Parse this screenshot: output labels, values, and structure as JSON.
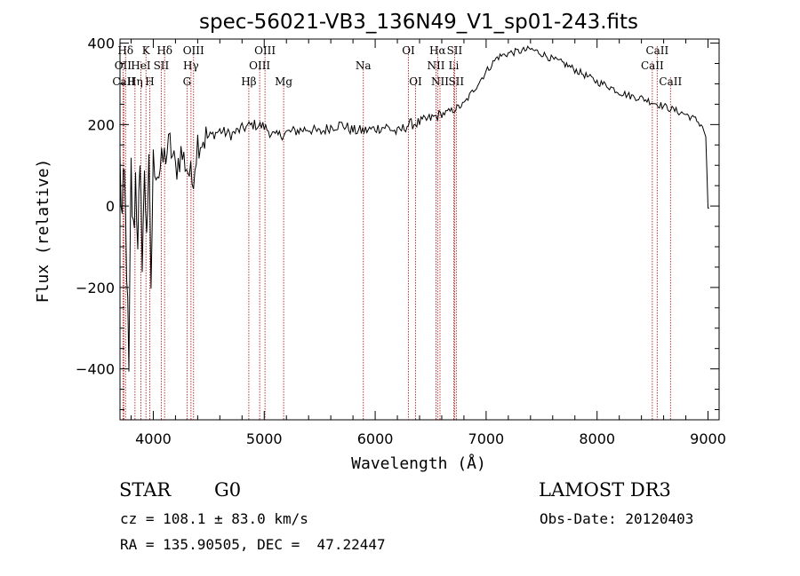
{
  "chart_data": {
    "type": "line",
    "title": "spec-56021-VB3_136N49_V1_sp01-243.fits",
    "xlabel": "Wavelength (Å)",
    "ylabel": "Flux (relative)",
    "xlim": [
      3700,
      9100
    ],
    "ylim": [
      -525,
      410
    ],
    "xticks": [
      4000,
      5000,
      6000,
      7000,
      8000,
      9000
    ],
    "yticks": [
      -400,
      -200,
      0,
      200,
      400
    ],
    "grid": false,
    "series": [
      {
        "name": "flux",
        "x": [
          3700,
          3720,
          3740,
          3760,
          3780,
          3800,
          3820,
          3840,
          3860,
          3880,
          3900,
          3920,
          3940,
          3960,
          3980,
          4000,
          4050,
          4100,
          4150,
          4200,
          4250,
          4300,
          4350,
          4400,
          4500,
          4600,
          4700,
          4800,
          4900,
          5000,
          5100,
          5200,
          5300,
          5400,
          5500,
          5600,
          5700,
          5800,
          5900,
          6000,
          6100,
          6200,
          6300,
          6400,
          6500,
          6600,
          6700,
          6800,
          6900,
          7000,
          7100,
          7200,
          7300,
          7400,
          7500,
          7600,
          7700,
          7800,
          7900,
          8000,
          8100,
          8200,
          8300,
          8400,
          8500,
          8600,
          8700,
          8800,
          8900,
          8950,
          8980,
          9000,
          9010
        ],
        "values": [
          100,
          -40,
          60,
          -130,
          -440,
          80,
          -80,
          70,
          -60,
          40,
          -100,
          50,
          -30,
          60,
          -190,
          110,
          80,
          120,
          150,
          90,
          130,
          100,
          60,
          160,
          170,
          185,
          175,
          190,
          200,
          195,
          170,
          180,
          185,
          190,
          180,
          195,
          200,
          185,
          185,
          190,
          195,
          180,
          200,
          205,
          215,
          225,
          235,
          250,
          290,
          330,
          365,
          375,
          380,
          385,
          375,
          360,
          350,
          335,
          320,
          305,
          295,
          280,
          270,
          265,
          255,
          245,
          235,
          225,
          210,
          195,
          170,
          -5,
          -5
        ]
      }
    ],
    "line_labels": [
      {
        "name": "Hδ",
        "x": 3750,
        "row": 1
      },
      {
        "name": "OII",
        "x": 3727,
        "row": 2
      },
      {
        "name": "CaII",
        "x": 3734,
        "row": 3
      },
      {
        "name": "K",
        "x": 3934,
        "row": 1
      },
      {
        "name": "HeI",
        "x": 3888,
        "row": 2
      },
      {
        "name": "Hη",
        "x": 3835,
        "row": 3
      },
      {
        "name": "Hδ",
        "x": 4102,
        "row": 1
      },
      {
        "name": "SII",
        "x": 4072,
        "row": 2
      },
      {
        "name": "H",
        "x": 3968,
        "row": 3
      },
      {
        "name": "OIII",
        "x": 4363,
        "row": 1
      },
      {
        "name": "Hγ",
        "x": 4340,
        "row": 2
      },
      {
        "name": "G",
        "x": 4304,
        "row": 3
      },
      {
        "name": "OIII",
        "x": 5007,
        "row": 1
      },
      {
        "name": "OIII",
        "x": 4959,
        "row": 2
      },
      {
        "name": "Hβ",
        "x": 4861,
        "row": 3
      },
      {
        "name": "Mg",
        "x": 5175,
        "row": 3
      },
      {
        "name": "Na",
        "x": 5893,
        "row": 2
      },
      {
        "name": "OI",
        "x": 6300,
        "row": 1
      },
      {
        "name": "OI",
        "x": 6364,
        "row": 3
      },
      {
        "name": "Hα",
        "x": 6563,
        "row": 1
      },
      {
        "name": "NII",
        "x": 6548,
        "row": 2
      },
      {
        "name": "NII",
        "x": 6584,
        "row": 3
      },
      {
        "name": "SII",
        "x": 6716,
        "row": 1
      },
      {
        "name": "Li",
        "x": 6708,
        "row": 2
      },
      {
        "name": "SII",
        "x": 6731,
        "row": 3
      },
      {
        "name": "CaII",
        "x": 8542,
        "row": 1
      },
      {
        "name": "CaII",
        "x": 8498,
        "row": 2
      },
      {
        "name": "CaII",
        "x": 8662,
        "row": 3
      }
    ]
  },
  "info": {
    "class_label": "STAR",
    "subclass": "G0",
    "survey": "LAMOST DR3",
    "redshift_text": "cz = 108.1 ± 83.0 km/s",
    "obs_date": "Obs-Date: 20120403",
    "coords": "RA = 135.90505, DEC =  47.22447"
  }
}
